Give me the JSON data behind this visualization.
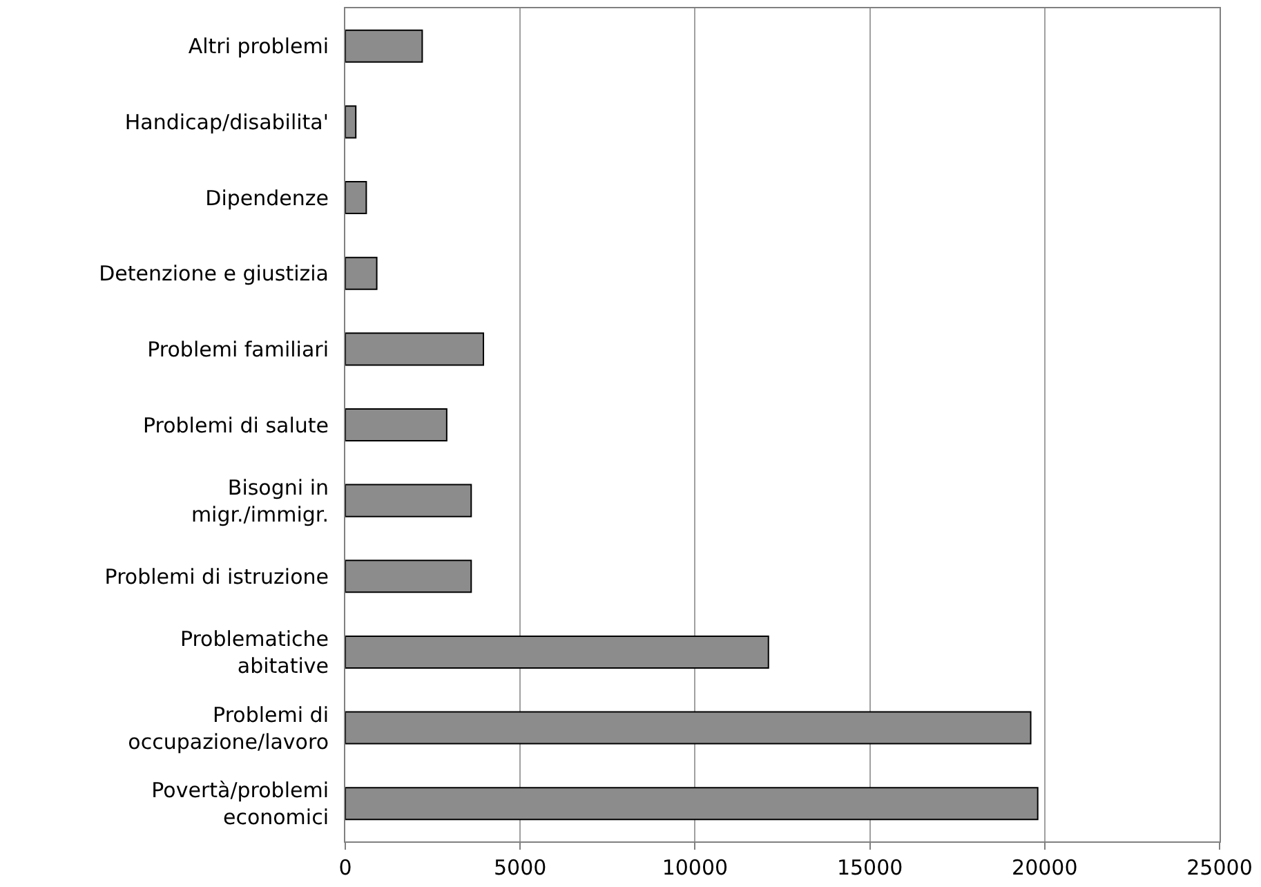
{
  "chart_data": {
    "type": "bar",
    "orientation": "horizontal",
    "categories": [
      "Altri problemi",
      "Handicap/disabilita'",
      "Dipendenze",
      "Detenzione e giustizia",
      "Problemi familiari",
      "Problemi di salute",
      "Bisogni in\nmigr./immigr.",
      "Problemi di istruzione",
      "Problematiche\nabitative",
      "Problemi di\noccupazione/lavoro",
      "Povertà/problemi\neconomici"
    ],
    "values": [
      2200,
      300,
      600,
      900,
      3950,
      2900,
      3600,
      3600,
      12100,
      19600,
      19800
    ],
    "color": "#8c8c8c",
    "xlim": [
      0,
      25000
    ],
    "xticks": [
      0,
      5000,
      10000,
      15000,
      20000,
      25000
    ],
    "grid": "x"
  }
}
